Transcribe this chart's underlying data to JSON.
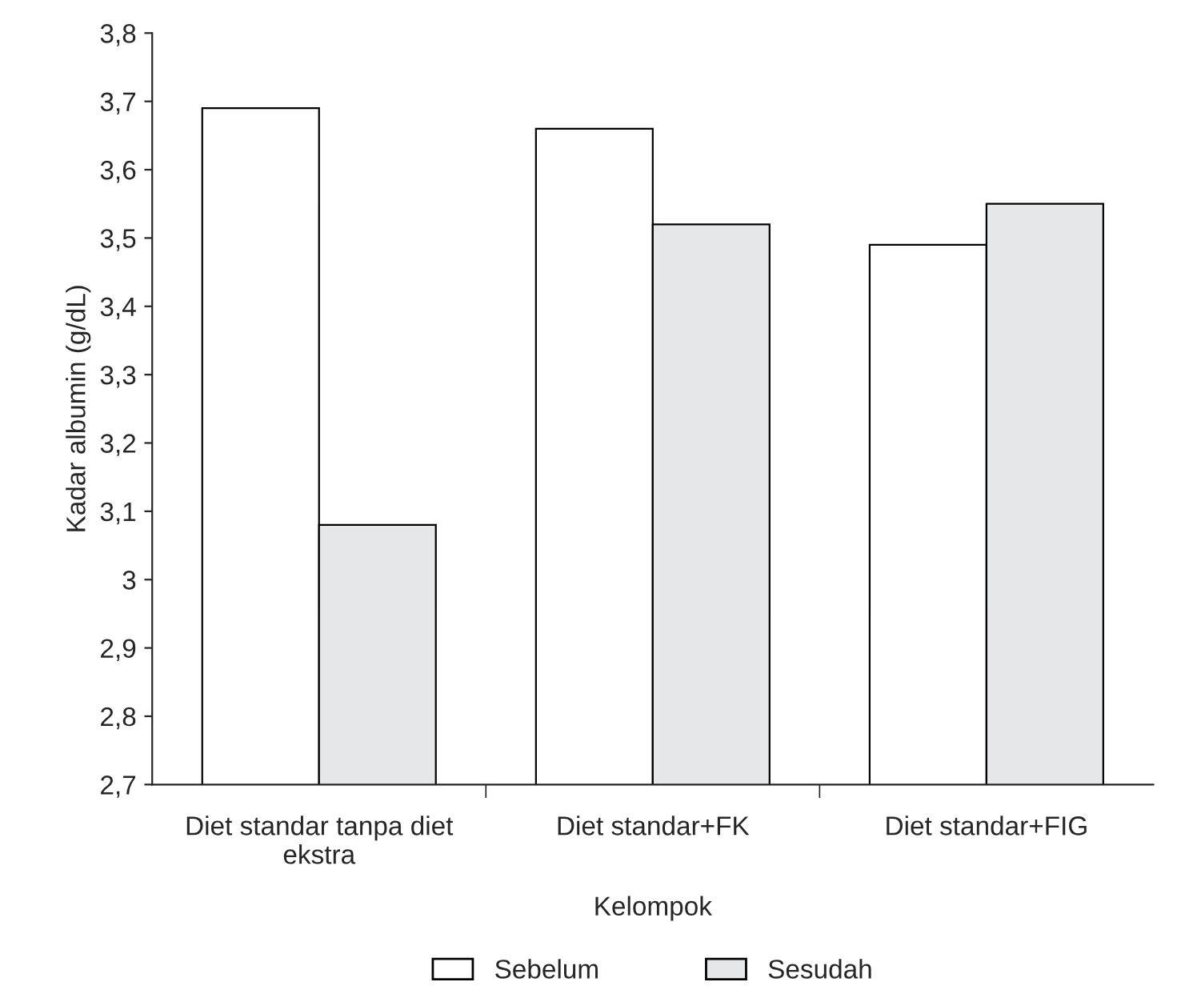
{
  "chart_data": {
    "type": "bar",
    "xlabel": "Kelompok",
    "ylabel": "Kadar albumin (g/dL)",
    "categories": [
      "Diet standar tanpa diet\nekstra",
      "Diet standar+FK",
      "Diet standar+FIG"
    ],
    "series": [
      {
        "name": "Sebelum",
        "color": "#ffffff",
        "values": [
          3.69,
          3.66,
          3.49
        ]
      },
      {
        "name": "Sesudah",
        "color": "#e6e7e9",
        "values": [
          3.08,
          3.52,
          3.55
        ]
      }
    ],
    "ylim": [
      2.7,
      3.8
    ],
    "yticks": [
      {
        "value": 2.7,
        "label": "2,7"
      },
      {
        "value": 2.8,
        "label": "2,8"
      },
      {
        "value": 2.9,
        "label": "2,9"
      },
      3,
      {
        "value": 3.1,
        "label": "3,1"
      },
      {
        "value": 3.2,
        "label": "3,2"
      },
      {
        "value": 3.3,
        "label": "3,3"
      },
      {
        "value": 3.4,
        "label": "3,4"
      },
      {
        "value": 3.5,
        "label": "3,5"
      },
      {
        "value": 3.6,
        "label": "3,6"
      },
      {
        "value": 3.7,
        "label": "3,7"
      },
      {
        "value": 3.8,
        "label": "3,8"
      }
    ],
    "grid": false,
    "legend": "bottom"
  }
}
